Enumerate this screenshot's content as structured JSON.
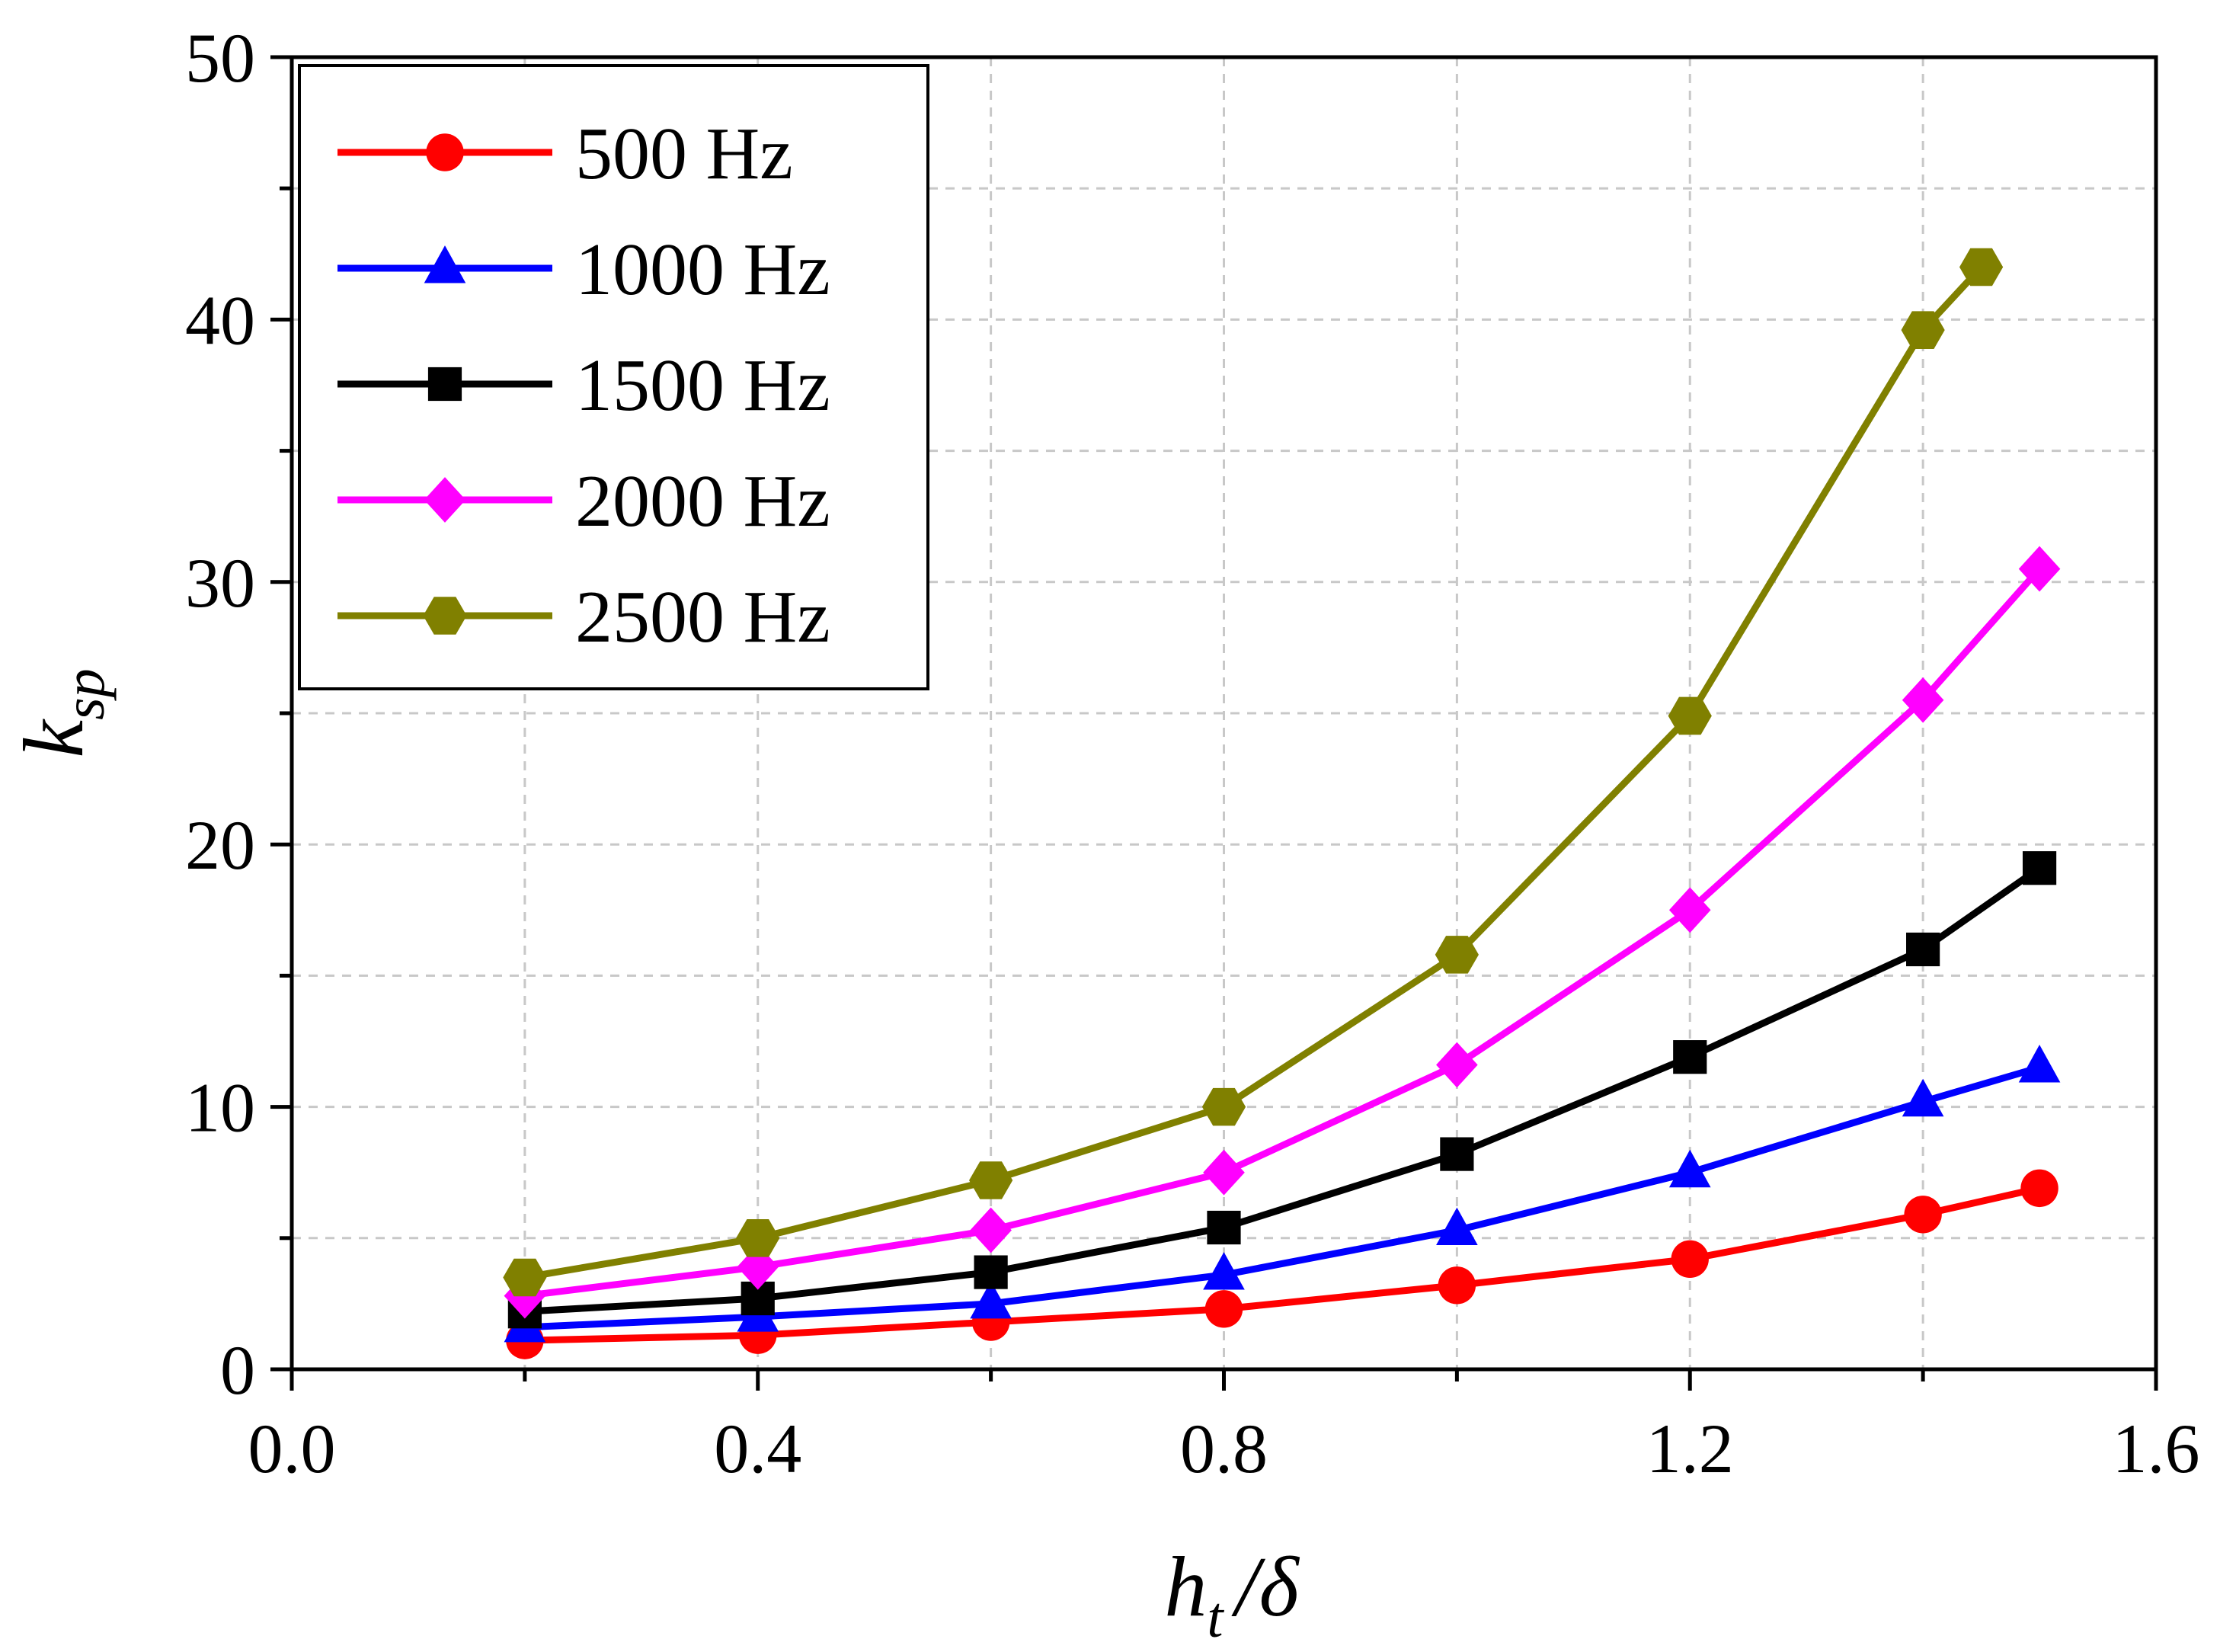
{
  "chart_data": {
    "type": "line",
    "title": "",
    "xlabel": "h_t/δ",
    "xlabel_main": "h",
    "xlabel_sub": "t",
    "xlabel_rest": "/δ",
    "ylabel": "k_sp",
    "ylabel_main": "k",
    "ylabel_sub": "sp",
    "xlim": [
      0.0,
      1.6
    ],
    "ylim": [
      0,
      50
    ],
    "xticks": [
      0.0,
      0.4,
      0.8,
      1.2,
      1.6
    ],
    "xtick_labels": [
      "0.0",
      "0.4",
      "0.8",
      "1.2",
      "1.6"
    ],
    "yticks": [
      0,
      10,
      20,
      30,
      40,
      50
    ],
    "ytick_labels": [
      "0",
      "10",
      "20",
      "30",
      "40",
      "50"
    ],
    "grid": true,
    "legend_position": "top-left",
    "series": [
      {
        "name": "500 Hz",
        "color": "#ff0000",
        "marker": "circle",
        "x": [
          0.2,
          0.4,
          0.6,
          0.8,
          1.0,
          1.2,
          1.4,
          1.5
        ],
        "values": [
          1.1,
          1.3,
          1.8,
          2.3,
          3.2,
          4.2,
          5.9,
          6.9
        ]
      },
      {
        "name": "1000 Hz",
        "color": "#0000ff",
        "marker": "triangle",
        "x": [
          0.2,
          0.4,
          0.6,
          0.8,
          1.0,
          1.2,
          1.4,
          1.5
        ],
        "values": [
          1.6,
          2.0,
          2.5,
          3.6,
          5.3,
          7.5,
          10.2,
          11.5
        ]
      },
      {
        "name": "1500 Hz",
        "color": "#000000",
        "marker": "square",
        "x": [
          0.2,
          0.4,
          0.6,
          0.8,
          1.0,
          1.2,
          1.4,
          1.5
        ],
        "values": [
          2.2,
          2.7,
          3.7,
          5.4,
          8.2,
          11.9,
          16.0,
          19.1
        ]
      },
      {
        "name": "2000 Hz",
        "color": "#ff00ff",
        "marker": "diamond",
        "x": [
          0.2,
          0.4,
          0.6,
          0.8,
          1.0,
          1.2,
          1.4,
          1.5
        ],
        "values": [
          2.8,
          3.9,
          5.3,
          7.5,
          11.6,
          17.5,
          25.5,
          30.5
        ]
      },
      {
        "name": "2500 Hz",
        "color": "#808000",
        "marker": "hexagon",
        "x": [
          0.2,
          0.4,
          0.6,
          0.8,
          1.0,
          1.2,
          1.4,
          1.45
        ],
        "values": [
          3.5,
          5.0,
          7.2,
          10.0,
          15.8,
          24.9,
          39.6,
          42.0
        ]
      }
    ]
  }
}
